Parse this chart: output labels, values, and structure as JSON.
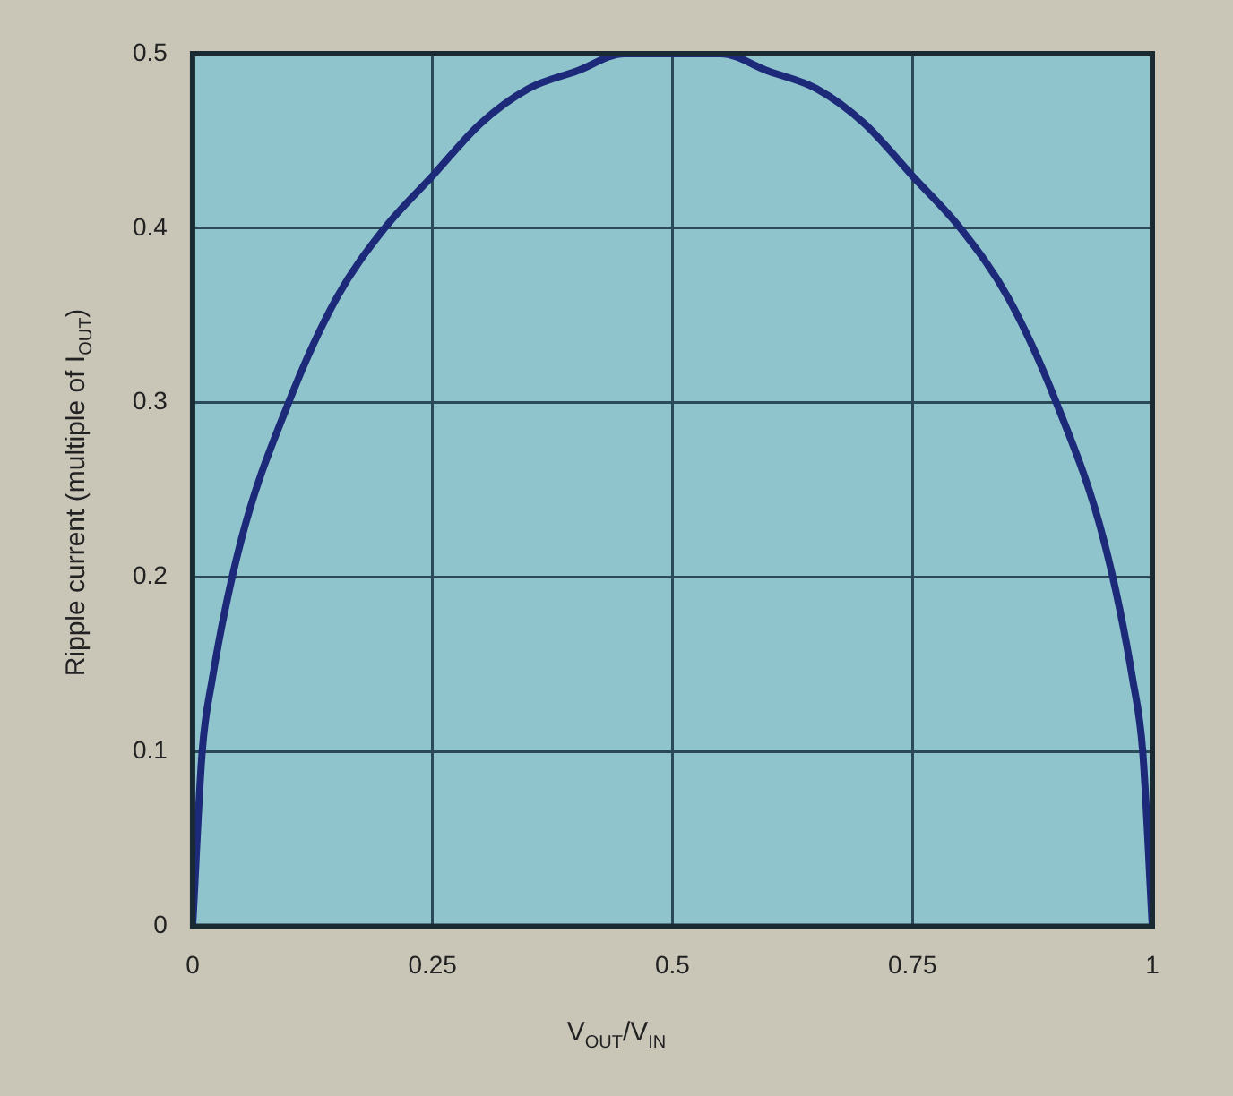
{
  "chart_data": {
    "type": "line",
    "xlabel": "V$_{OUT}$/V$_{IN}$",
    "ylabel": "Ripple current (multiple of I$_{OUT}$)",
    "x": [
      0,
      0.01,
      0.02,
      0.05,
      0.1,
      0.15,
      0.2,
      0.25,
      0.3,
      0.35,
      0.4,
      0.45,
      0.5,
      0.55,
      0.6,
      0.65,
      0.7,
      0.75,
      0.8,
      0.85,
      0.9,
      0.95,
      0.98,
      0.99,
      1
    ],
    "series": [
      {
        "color": "#1d2a7a",
        "values": [
          0,
          0.1,
          0.14,
          0.22,
          0.3,
          0.36,
          0.4,
          0.43,
          0.46,
          0.48,
          0.49,
          0.5,
          0.5,
          0.5,
          0.49,
          0.48,
          0.46,
          0.43,
          0.4,
          0.36,
          0.3,
          0.22,
          0.14,
          0.1,
          0
        ]
      }
    ],
    "xlim": [
      0,
      1
    ],
    "xticks": [
      0,
      0.25,
      0.5,
      0.75,
      1
    ],
    "ylim": [
      0,
      0.5
    ],
    "yticks": [
      0,
      0.1,
      0.2,
      0.3,
      0.4,
      0.5
    ],
    "grid": true,
    "legend": false,
    "marker": "none",
    "line_style": "solid"
  }
}
